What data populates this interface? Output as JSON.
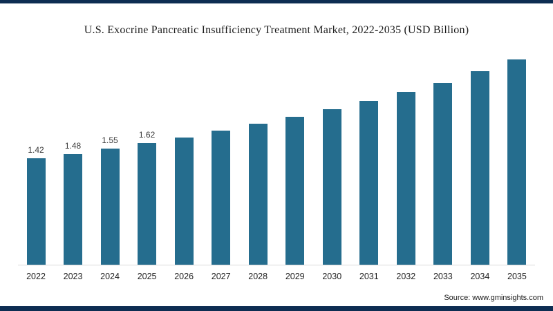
{
  "page": {
    "title": "U.S. Exocrine Pancreatic Insufficiency Treatment Market, 2022-2035 (USD Billion)",
    "source": "Source: www.gminsights.com"
  },
  "colors": {
    "bar": "#256d8e",
    "frame": "#0d2d52"
  },
  "chart_data": {
    "type": "bar",
    "title": "U.S. Exocrine Pancreatic Insufficiency Treatment Market, 2022-2035 (USD Billion)",
    "categories": [
      "2022",
      "2023",
      "2024",
      "2025",
      "2026",
      "2027",
      "2028",
      "2029",
      "2030",
      "2031",
      "2032",
      "2033",
      "2034",
      "2035"
    ],
    "values": [
      1.42,
      1.48,
      1.55,
      1.62,
      1.7,
      1.79,
      1.88,
      1.97,
      2.08,
      2.19,
      2.31,
      2.43,
      2.58,
      2.74
    ],
    "data_labels": [
      "1.42",
      "1.48",
      "1.55",
      "1.62",
      "",
      "",
      "",
      "",
      "",
      "",
      "",
      "",
      "",
      ""
    ],
    "xlabel": "",
    "ylabel": "",
    "ylim": [
      0,
      2.8
    ],
    "gridlines": false,
    "legend": false,
    "bar_color": "#256d8e",
    "source": "Source: www.gminsights.com"
  }
}
